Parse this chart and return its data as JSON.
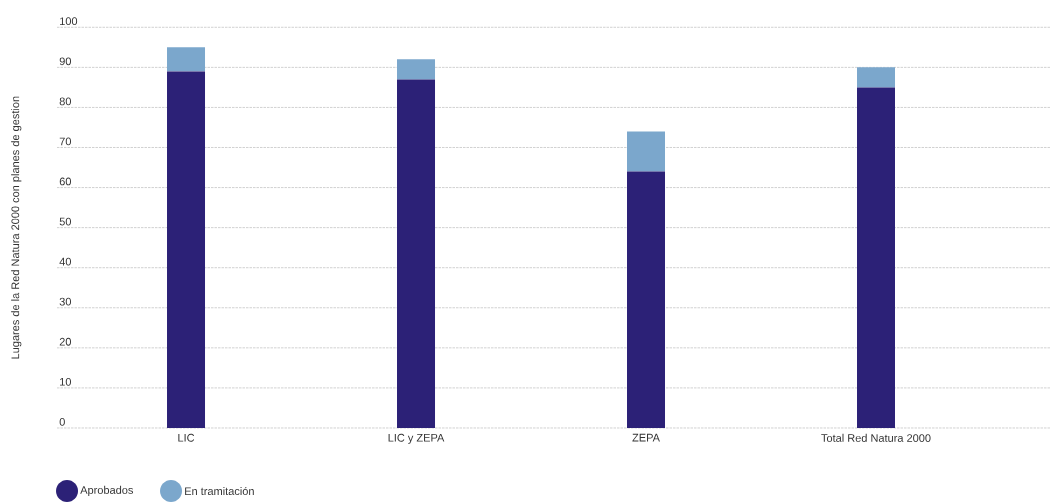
{
  "chart_data": {
    "type": "bar",
    "stacked": true,
    "ylabel": "Lugares de la Red Natura 2000 con planes de gestion",
    "categories": [
      "LIC",
      "LIC y ZEPA",
      "ZEPA",
      "Total Red Natura 2000"
    ],
    "series": [
      {
        "name": "Aprobados",
        "color": "#2c2177",
        "values": [
          89,
          87,
          64,
          85
        ]
      },
      {
        "name": "En tramitación",
        "color": "#7ba7cc",
        "values": [
          6,
          5,
          10,
          5
        ]
      }
    ],
    "ylim": [
      0,
      100
    ],
    "yticks": [
      0,
      10,
      20,
      30,
      40,
      50,
      60,
      70,
      80,
      90,
      100
    ],
    "grid": "y",
    "legend": "bottom left"
  }
}
